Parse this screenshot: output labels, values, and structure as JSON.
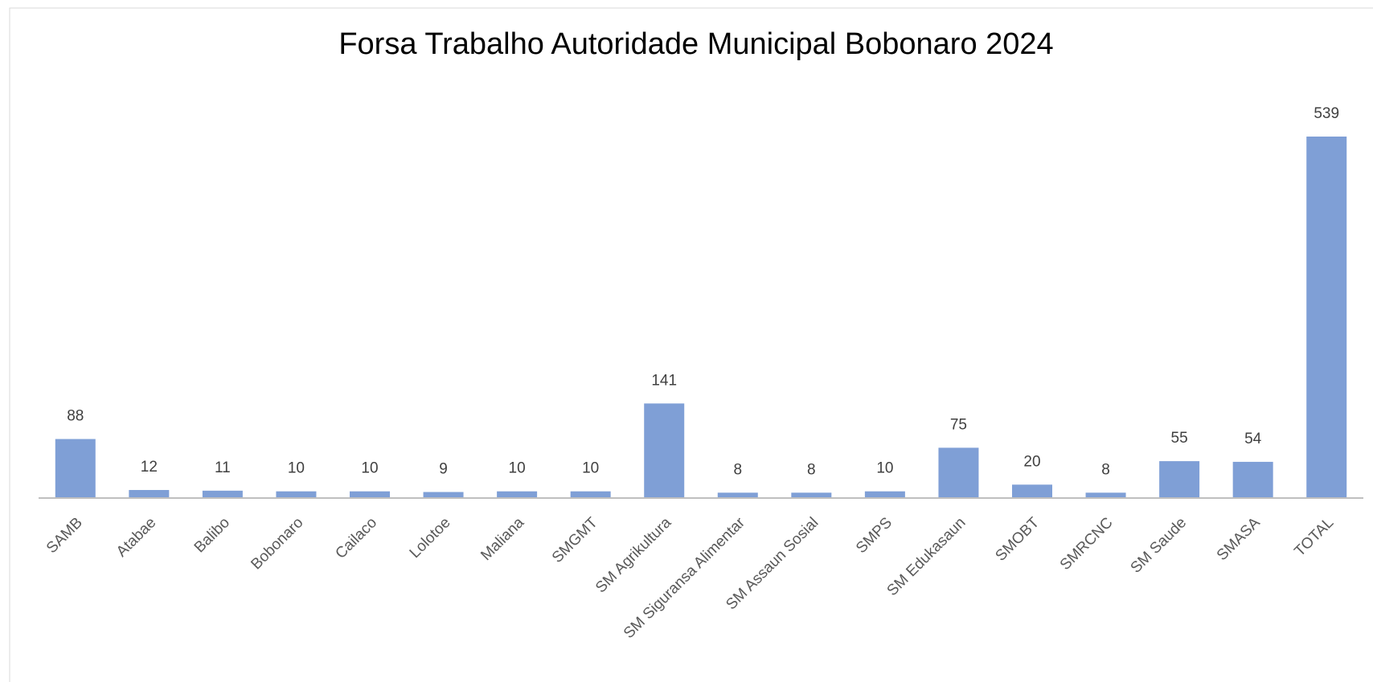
{
  "chart_data": {
    "type": "bar",
    "title": "Forsa Trabalho Autoridade Municipal Bobonaro 2024",
    "categories": [
      "SAMB",
      "Atabae",
      "Balibo",
      "Bobonaro",
      "Cailaco",
      "Lolotoe",
      "Maliana",
      "SMGMT",
      "SM Agrikultura",
      "SM Siguransa Alimentar",
      "SM Assaun Sosial",
      "SMPS",
      "SM Edukasaun",
      "SMOBT",
      "SMRCNC",
      "SM Saude",
      "SMASA",
      "TOTAL"
    ],
    "values": [
      88,
      12,
      11,
      10,
      10,
      9,
      10,
      10,
      141,
      8,
      8,
      10,
      75,
      20,
      8,
      55,
      54,
      539
    ],
    "color": "#7f9fd6"
  }
}
